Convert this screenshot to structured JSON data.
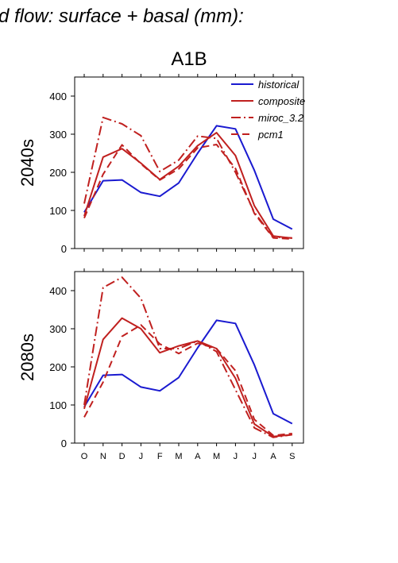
{
  "title": "d flow: surface + basal (mm):",
  "scenario": "A1B",
  "legend": [
    {
      "name": "historical",
      "color": "#1a1ad0",
      "dash": "solid"
    },
    {
      "name": "composite",
      "color": "#c0201f",
      "dash": "solid"
    },
    {
      "name": "miroc_3.2",
      "color": "#c0201f",
      "dash": "dashdot"
    },
    {
      "name": "pcm1",
      "color": "#c0201f",
      "dash": "dashed"
    }
  ],
  "chart_data": [
    {
      "type": "line",
      "ylabel": "2040s",
      "categories": [
        "O",
        "N",
        "D",
        "J",
        "F",
        "M",
        "A",
        "M",
        "J",
        "J",
        "A",
        "S"
      ],
      "ylim": [
        0,
        450
      ],
      "yticks": [
        0,
        100,
        200,
        300,
        400
      ],
      "series": [
        {
          "name": "historical",
          "values": [
            95,
            178,
            180,
            147,
            137,
            172,
            250,
            322,
            314,
            205,
            77,
            51
          ]
        },
        {
          "name": "composite",
          "values": [
            85,
            240,
            262,
            224,
            181,
            216,
            270,
            304,
            244,
            112,
            33,
            27
          ]
        },
        {
          "name": "miroc_3.2",
          "values": [
            118,
            344,
            327,
            296,
            202,
            232,
            295,
            289,
            200,
            95,
            30,
            28
          ]
        },
        {
          "name": "pcm1",
          "values": [
            80,
            195,
            272,
            222,
            180,
            209,
            264,
            273,
            210,
            92,
            28,
            25
          ]
        }
      ]
    },
    {
      "type": "line",
      "ylabel": "2080s",
      "categories": [
        "O",
        "N",
        "D",
        "J",
        "F",
        "M",
        "A",
        "M",
        "J",
        "J",
        "A",
        "S"
      ],
      "ylim": [
        0,
        450
      ],
      "yticks": [
        0,
        100,
        200,
        300,
        400
      ],
      "series": [
        {
          "name": "historical",
          "values": [
            95,
            178,
            180,
            147,
            137,
            172,
            250,
            322,
            314,
            205,
            77,
            51
          ]
        },
        {
          "name": "composite",
          "values": [
            90,
            272,
            328,
            300,
            237,
            255,
            268,
            248,
            170,
            50,
            17,
            22
          ]
        },
        {
          "name": "miroc_3.2",
          "values": [
            100,
            408,
            435,
            380,
            248,
            248,
            268,
            240,
            140,
            40,
            15,
            22
          ]
        },
        {
          "name": "pcm1",
          "values": [
            68,
            160,
            280,
            310,
            260,
            235,
            262,
            248,
            190,
            62,
            20,
            25
          ]
        }
      ]
    }
  ]
}
